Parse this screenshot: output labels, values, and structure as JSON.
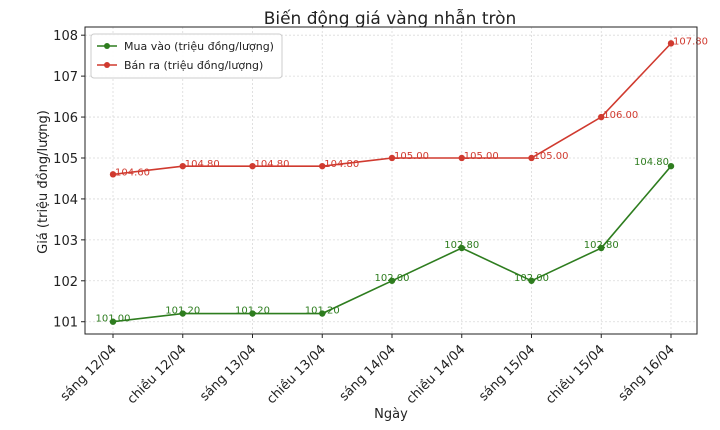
{
  "chart_data": {
    "type": "line",
    "title": "Biến động giá vàng nhẫn tròn",
    "xlabel": "Ngày",
    "ylabel": "Giá (triệu đồng/lượng)",
    "categories": [
      "sáng 12/04",
      "chiều 12/04",
      "sáng 13/04",
      "chiều 13/04",
      "sáng 14/04",
      "chiều 14/04",
      "sáng 15/04",
      "chiều 15/04",
      "sáng 16/04"
    ],
    "ylim": [
      100.7,
      108.2
    ],
    "yticks": [
      "101",
      "102",
      "103",
      "104",
      "105",
      "106",
      "107",
      "108"
    ],
    "grid": true,
    "legend_position": "top-left",
    "series": [
      {
        "name": "Mua vào (triệu đồng/lượng)",
        "color": "#2e7d1f",
        "values": [
          101.0,
          101.2,
          101.2,
          101.2,
          102.0,
          102.8,
          102.0,
          102.8,
          104.8
        ],
        "labels": [
          "101.00",
          "101.20",
          "101.20",
          "101.20",
          "102.00",
          "102.80",
          "102.00",
          "102.80",
          "104.80"
        ]
      },
      {
        "name": "Bán ra (triệu đồng/lượng)",
        "color": "#d03a2f",
        "values": [
          104.6,
          104.8,
          104.8,
          104.8,
          105.0,
          105.0,
          105.0,
          106.0,
          107.8
        ],
        "labels": [
          "104.60",
          "104.80",
          "104.80",
          "104.80",
          "105.00",
          "105.00",
          "105.00",
          "106.00",
          "107.80"
        ]
      }
    ]
  }
}
